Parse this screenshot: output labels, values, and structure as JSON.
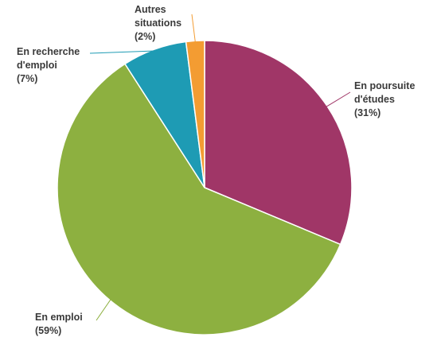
{
  "chart_data": {
    "type": "pie",
    "title": "",
    "slices": [
      {
        "name": "En poursuite d'études",
        "value": 31,
        "label_lines": [
          "En poursuite",
          "d'études",
          "(31%)"
        ],
        "color": "#a03667"
      },
      {
        "name": "En emploi",
        "value": 59,
        "label_lines": [
          "En emploi",
          "(59%)"
        ],
        "color": "#8db040"
      },
      {
        "name": "En recherche d'emploi",
        "value": 7,
        "label_lines": [
          "En recherche",
          "d'emploi",
          "(7%)"
        ],
        "color": "#1e9bb4"
      },
      {
        "name": "Autres situations",
        "value": 2,
        "label_lines": [
          "Autres",
          "situations",
          "(2%)"
        ],
        "color": "#f39c32"
      }
    ]
  }
}
